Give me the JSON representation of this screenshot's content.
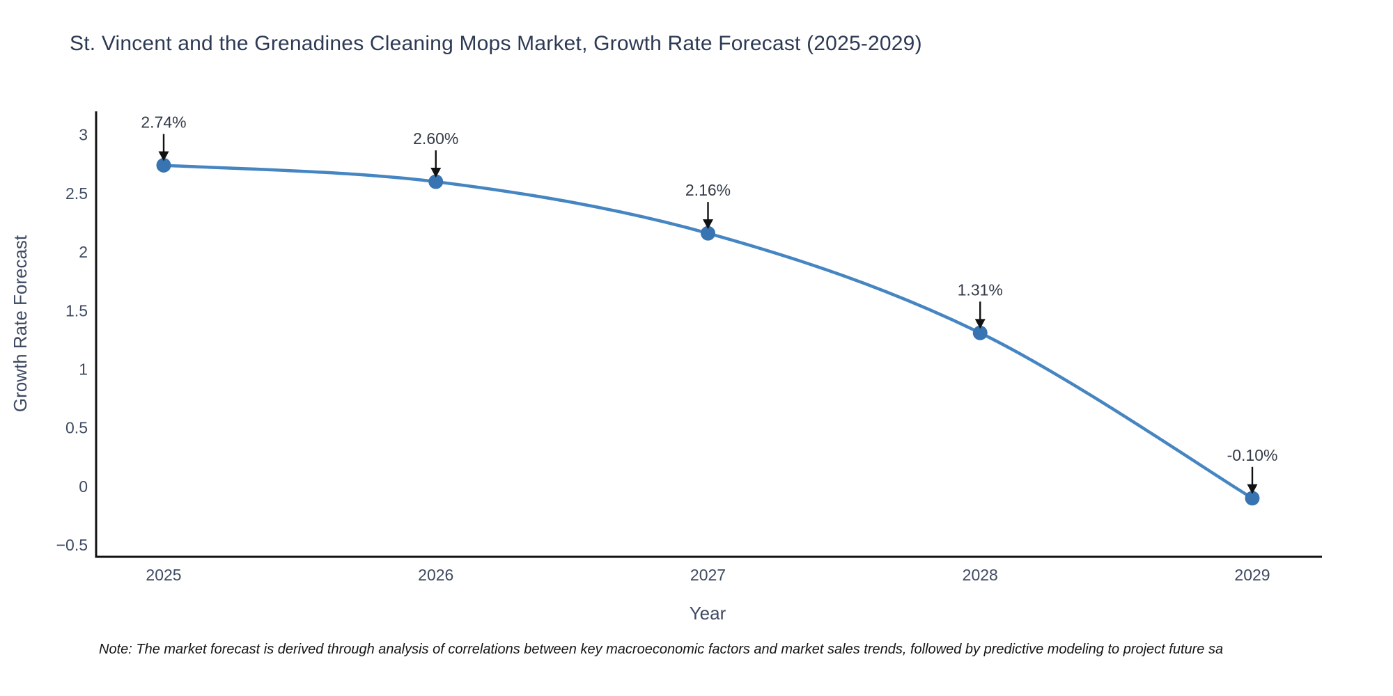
{
  "header": {
    "title": "St. Vincent and the Grenadines Cleaning Mops Market, Growth Rate Forecast (2025-2029)"
  },
  "chart_data": {
    "type": "line",
    "title": "St. Vincent and the Grenadines Cleaning Mops Market, Growth Rate Forecast (2025-2029)",
    "xlabel": "Year",
    "ylabel": "Growth Rate Forecast",
    "x": [
      2025,
      2026,
      2027,
      2028,
      2029
    ],
    "series": [
      {
        "name": "Growth Rate Forecast",
        "values": [
          2.74,
          2.6,
          2.16,
          1.31,
          -0.1
        ]
      }
    ],
    "point_labels": [
      "2.74%",
      "2.60%",
      "2.16%",
      "1.31%",
      "-0.10%"
    ],
    "xtick_labels": [
      "2025",
      "2026",
      "2027",
      "2028",
      "2029"
    ],
    "ytick_values": [
      3,
      2.5,
      2,
      1.5,
      1,
      0.5,
      0,
      -0.5
    ],
    "ytick_labels": [
      "3",
      "2.5",
      "2",
      "1.5",
      "1",
      "0.5",
      "0",
      "−0.5"
    ],
    "ylim": [
      -0.6,
      3.2
    ],
    "grid": false,
    "legend_position": "none",
    "line_shape": "spline",
    "colors": {
      "line": "#4585c2",
      "marker": "#3874b2",
      "axis_line": "#111111",
      "tick_label": "#3e4a61",
      "axis_title": "#3e4a61",
      "annotation_text": "#333b48",
      "annotation_arrow": "#111111",
      "title": "#2d3a54",
      "background": "#ffffff"
    }
  },
  "footnote": {
    "text": "Note: The market forecast is derived through analysis of correlations between key macroeconomic factors and market sales trends, followed by predictive modeling to project future sa"
  }
}
